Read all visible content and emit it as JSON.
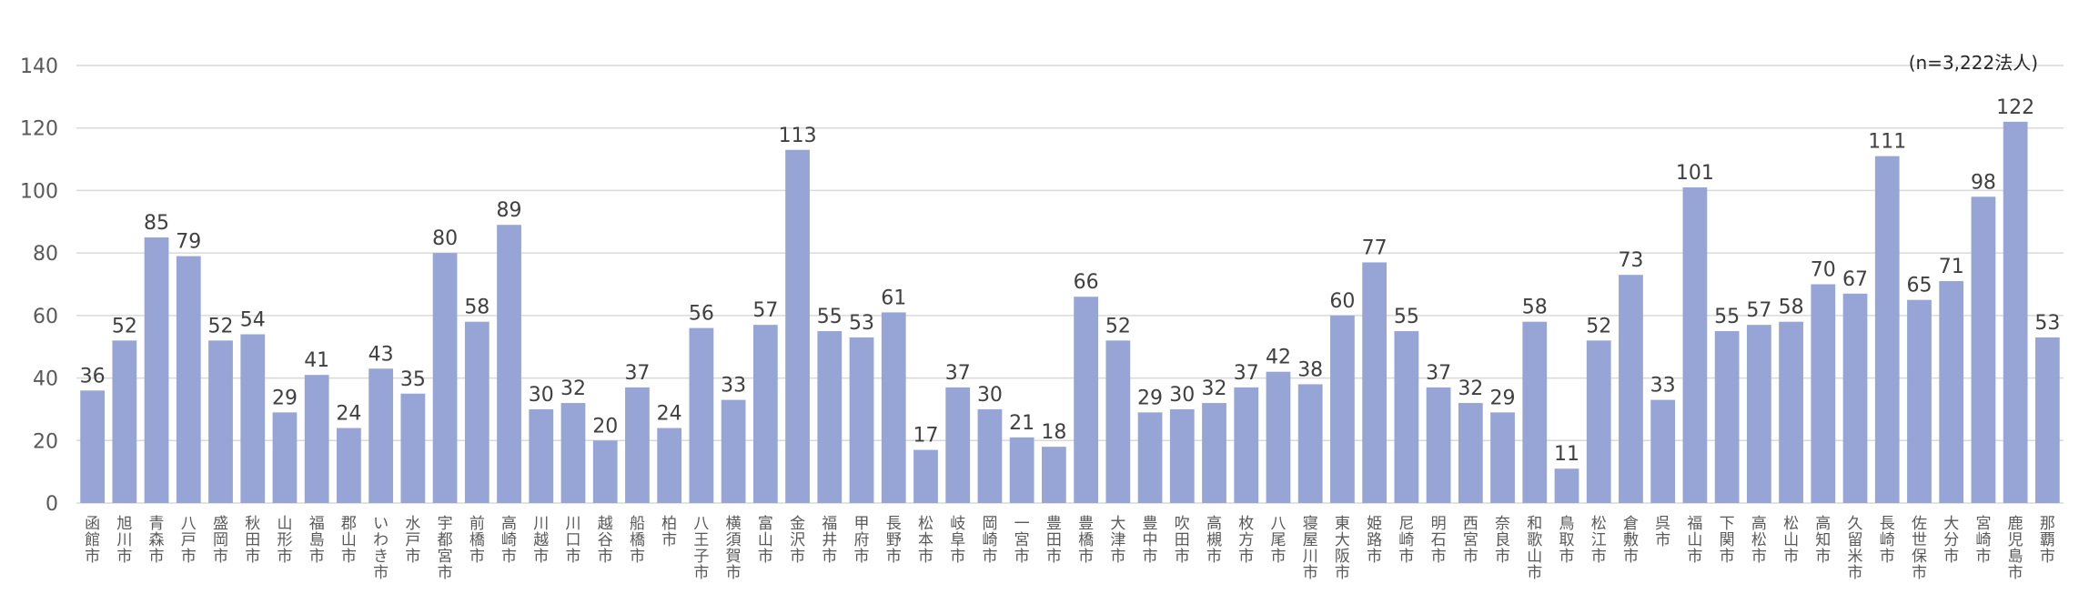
{
  "chart_data": {
    "type": "bar",
    "note": "(n=3,222法人)",
    "ylim": [
      0,
      140
    ],
    "yticks": [
      "0",
      "20",
      "40",
      "60",
      "80",
      "100",
      "120",
      "140"
    ],
    "grid": true,
    "bar_color": "#97a5d6",
    "categories": [
      "函館市",
      "旭川市",
      "青森市",
      "八戸市",
      "盛岡市",
      "秋田市",
      "山形市",
      "福島市",
      "郡山市",
      "いわき市",
      "水戸市",
      "宇都宮市",
      "前橋市",
      "高崎市",
      "川越市",
      "川口市",
      "越谷市",
      "船橋市",
      "柏市",
      "八王子市",
      "横須賀市",
      "富山市",
      "金沢市",
      "福井市",
      "甲府市",
      "長野市",
      "松本市",
      "岐阜市",
      "岡崎市",
      "一宮市",
      "豊田市",
      "豊橋市",
      "大津市",
      "豊中市",
      "吹田市",
      "高槻市",
      "枚方市",
      "八尾市",
      "寝屋川市",
      "東大阪市",
      "姫路市",
      "尼崎市",
      "明石市",
      "西宮市",
      "奈良市",
      "和歌山市",
      "鳥取市",
      "松江市",
      "倉敷市",
      "呉市",
      "福山市",
      "下関市",
      "高松市",
      "松山市",
      "高知市",
      "久留米市",
      "長崎市",
      "佐世保市",
      "大分市",
      "宮崎市",
      "鹿児島市",
      "那覇市"
    ],
    "values": [
      36,
      52,
      85,
      79,
      52,
      54,
      29,
      41,
      24,
      43,
      35,
      80,
      58,
      89,
      30,
      32,
      20,
      37,
      24,
      56,
      33,
      57,
      113,
      55,
      53,
      61,
      17,
      37,
      30,
      21,
      18,
      66,
      52,
      29,
      30,
      32,
      37,
      42,
      38,
      60,
      77,
      55,
      37,
      32,
      29,
      58,
      11,
      52,
      73,
      33,
      101,
      55,
      57,
      58,
      70,
      67,
      111,
      65,
      71,
      98,
      122,
      53
    ]
  }
}
